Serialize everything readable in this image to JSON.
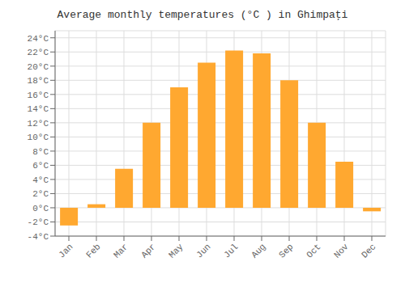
{
  "chart_data": {
    "type": "bar",
    "title": "Average monthly temperatures (°C ) in Ghimpaţi",
    "categories": [
      "Jan",
      "Feb",
      "Mar",
      "Apr",
      "May",
      "Jun",
      "Jul",
      "Aug",
      "Sep",
      "Oct",
      "Nov",
      "Dec"
    ],
    "values": [
      -2.5,
      0.5,
      5.5,
      12.0,
      17.0,
      20.5,
      22.2,
      21.8,
      18.0,
      12.0,
      6.5,
      -0.5
    ],
    "color": "#FFA830",
    "ylim": [
      -4,
      25
    ],
    "yticks": [
      {
        "value": -4,
        "label": "-4°C"
      },
      {
        "value": -2,
        "label": "-2°C"
      },
      {
        "value": 0,
        "label": "0°C"
      },
      {
        "value": 2,
        "label": "2°C"
      },
      {
        "value": 4,
        "label": "4°C"
      },
      {
        "value": 6,
        "label": "6°C"
      },
      {
        "value": 8,
        "label": "8°C"
      },
      {
        "value": 10,
        "label": "10°C"
      },
      {
        "value": 12,
        "label": "12°C"
      },
      {
        "value": 14,
        "label": "14°C"
      },
      {
        "value": 16,
        "label": "16°C"
      },
      {
        "value": 18,
        "label": "18°C"
      },
      {
        "value": 20,
        "label": "20°C"
      },
      {
        "value": 22,
        "label": "22°C"
      },
      {
        "value": 24,
        "label": "24°C"
      }
    ],
    "grid": true
  }
}
